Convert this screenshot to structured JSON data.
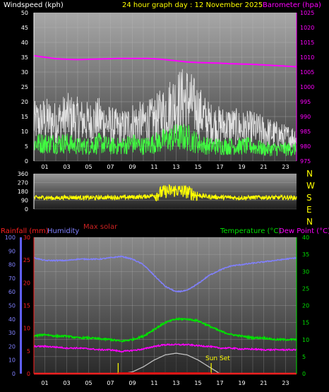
{
  "header": {
    "wind_label": "Windspeed (kph)",
    "title": "24 hour graph day : 12 November 2025",
    "baro_label": "Barometer (hpa)"
  },
  "colors": {
    "wind_label": "#ffffff",
    "title": "#ffff00",
    "baro": "#ff00ff",
    "wind_gust": "#e0e0e0",
    "wind_avg": "#40ff40",
    "wind_dir": "#ffff00",
    "rain": "#ff2020",
    "humidity": "#8080ff",
    "temperature": "#00e000",
    "dewpoint": "#ff00ff",
    "solar": "#c0c0c0",
    "sunset": "#ffff00"
  },
  "x_ticks": [
    "01",
    "03",
    "05",
    "07",
    "09",
    "11",
    "13",
    "15",
    "17",
    "19",
    "21",
    "23"
  ],
  "x_ticks_bottom": [
    "01",
    "03",
    "05",
    "07",
    "09",
    "11",
    "13",
    "15",
    "17",
    "19",
    "21",
    "23"
  ],
  "compass": [
    "N",
    "W",
    "S",
    "E",
    "N"
  ],
  "mid_labels": {
    "max_solar": "Max solar"
  },
  "lower_header": {
    "rain_label": "Rainfall (mm)",
    "humidity_label": "Humidity",
    "temp_label": "Temperature (°C)",
    "dew_label": "Dew Point (°C)"
  },
  "sun_set_label": "Sun Set",
  "chart_data": [
    {
      "type": "line",
      "title": "24 hour graph day : 12 November 2025",
      "ylabel": "Windspeed (kph)",
      "y2label": "Barometer (hpa)",
      "ylim": [
        0,
        50
      ],
      "y2lim": [
        975,
        1025
      ],
      "y_ticks": [
        0,
        5,
        10,
        15,
        20,
        25,
        30,
        35,
        40,
        45,
        50
      ],
      "y2_ticks": [
        975,
        980,
        985,
        990,
        995,
        1000,
        1005,
        1010,
        1015,
        1020,
        1025
      ],
      "x_hours": [
        0,
        1,
        2,
        3,
        4,
        5,
        6,
        7,
        8,
        9,
        10,
        11,
        12,
        13,
        14,
        15,
        16,
        17,
        18,
        19,
        20,
        21,
        22,
        23,
        24
      ],
      "series": [
        {
          "name": "Barometer (hpa)",
          "axis": "right",
          "values": [
            1010.5,
            1010,
            1009.5,
            1009.3,
            1009.2,
            1009.3,
            1009.4,
            1009.5,
            1009.6,
            1009.6,
            1009.6,
            1009.5,
            1009.2,
            1008.8,
            1008.4,
            1008.2,
            1008.1,
            1008,
            1007.8,
            1007.7,
            1007.6,
            1007.4,
            1007.2,
            1007,
            1006.8
          ]
        },
        {
          "name": "Windspeed (kph)",
          "axis": "left",
          "values": [
            13,
            14,
            13,
            15,
            14,
            13,
            14,
            12,
            11,
            13,
            13,
            14,
            17,
            20,
            21,
            17,
            13,
            12,
            12,
            11,
            11,
            10,
            9,
            8,
            8
          ]
        },
        {
          "axis": "left",
          "values": [
            6,
            6,
            6,
            6,
            5,
            5,
            6,
            5,
            5,
            6,
            5,
            6,
            7,
            8,
            8,
            6,
            5,
            5,
            5,
            5,
            5,
            4,
            4,
            4,
            4
          ]
        }
      ]
    },
    {
      "type": "scatter",
      "ylim": [
        0,
        360
      ],
      "y_ticks": [
        0,
        90,
        180,
        270,
        360
      ],
      "x_hours": [
        0,
        1,
        2,
        3,
        4,
        5,
        6,
        7,
        8,
        9,
        10,
        11,
        12,
        13,
        14,
        15,
        16,
        17,
        18,
        19,
        20,
        21,
        22,
        23,
        24
      ],
      "series": [
        {
          "values": [
            115,
            118,
            112,
            120,
            118,
            115,
            117,
            120,
            118,
            122,
            125,
            140,
            180,
            190,
            175,
            140,
            125,
            120,
            118,
            115,
            118,
            120,
            116,
            118,
            115
          ]
        }
      ]
    },
    {
      "type": "line",
      "y_left_ticks_rain": [
        0,
        5,
        10,
        15,
        20,
        25,
        30
      ],
      "y_left_ticks_humidity": [
        0,
        10,
        20,
        30,
        40,
        50,
        60,
        70,
        80,
        90,
        100
      ],
      "y_right_ticks": [
        0,
        5,
        10,
        15,
        20,
        25,
        30,
        35,
        40
      ],
      "ylim_rain": [
        0,
        30
      ],
      "ylim_humidity": [
        0,
        100
      ],
      "ylim_temp": [
        0,
        40
      ],
      "x_hours": [
        0,
        1,
        2,
        3,
        4,
        5,
        6,
        7,
        8,
        9,
        10,
        11,
        12,
        13,
        14,
        15,
        16,
        17,
        18,
        19,
        20,
        21,
        22,
        23,
        24
      ],
      "series": [
        {
          "name": "Humidity",
          "axis": "humidity",
          "values": [
            85,
            83,
            83,
            83,
            84,
            84,
            84,
            85,
            86,
            84,
            80,
            72,
            64,
            60,
            61,
            66,
            72,
            76,
            79,
            80,
            81,
            82,
            83,
            84,
            85
          ]
        },
        {
          "name": "Temperature (°C)",
          "axis": "temp",
          "values": [
            11,
            11.5,
            11,
            11,
            10.5,
            10.5,
            10.2,
            10,
            9.5,
            10,
            11,
            13,
            15,
            16,
            16,
            15.5,
            14,
            12.5,
            11.5,
            11,
            10.5,
            10.5,
            10,
            10,
            10
          ]
        },
        {
          "name": "Dew Point (°C)",
          "axis": "temp",
          "values": [
            8,
            8,
            7.8,
            7.5,
            7.5,
            7.3,
            7,
            7,
            6.5,
            6.8,
            7.2,
            8,
            8.5,
            8.5,
            8.5,
            8.2,
            8,
            7.5,
            7.5,
            7.2,
            7.2,
            7,
            7,
            7,
            7
          ]
        },
        {
          "name": "Rainfall (mm)",
          "axis": "rain",
          "values": [
            0,
            0,
            0,
            0,
            0,
            0,
            0,
            0,
            0,
            0,
            0,
            0,
            0,
            0,
            0,
            0,
            0,
            0,
            0,
            0,
            0,
            0,
            0,
            0,
            0
          ]
        },
        {
          "name": "Max solar",
          "axis": "temp",
          "values": [
            0,
            0,
            0,
            0,
            0,
            0,
            0,
            0,
            0,
            0.5,
            2,
            4,
            5.5,
            6,
            5.5,
            4,
            2,
            0,
            0,
            0,
            0,
            0,
            0,
            0,
            0
          ]
        }
      ],
      "markers": {
        "sunrise_hour": 7.7,
        "sunset_hour": 16.2
      }
    }
  ]
}
